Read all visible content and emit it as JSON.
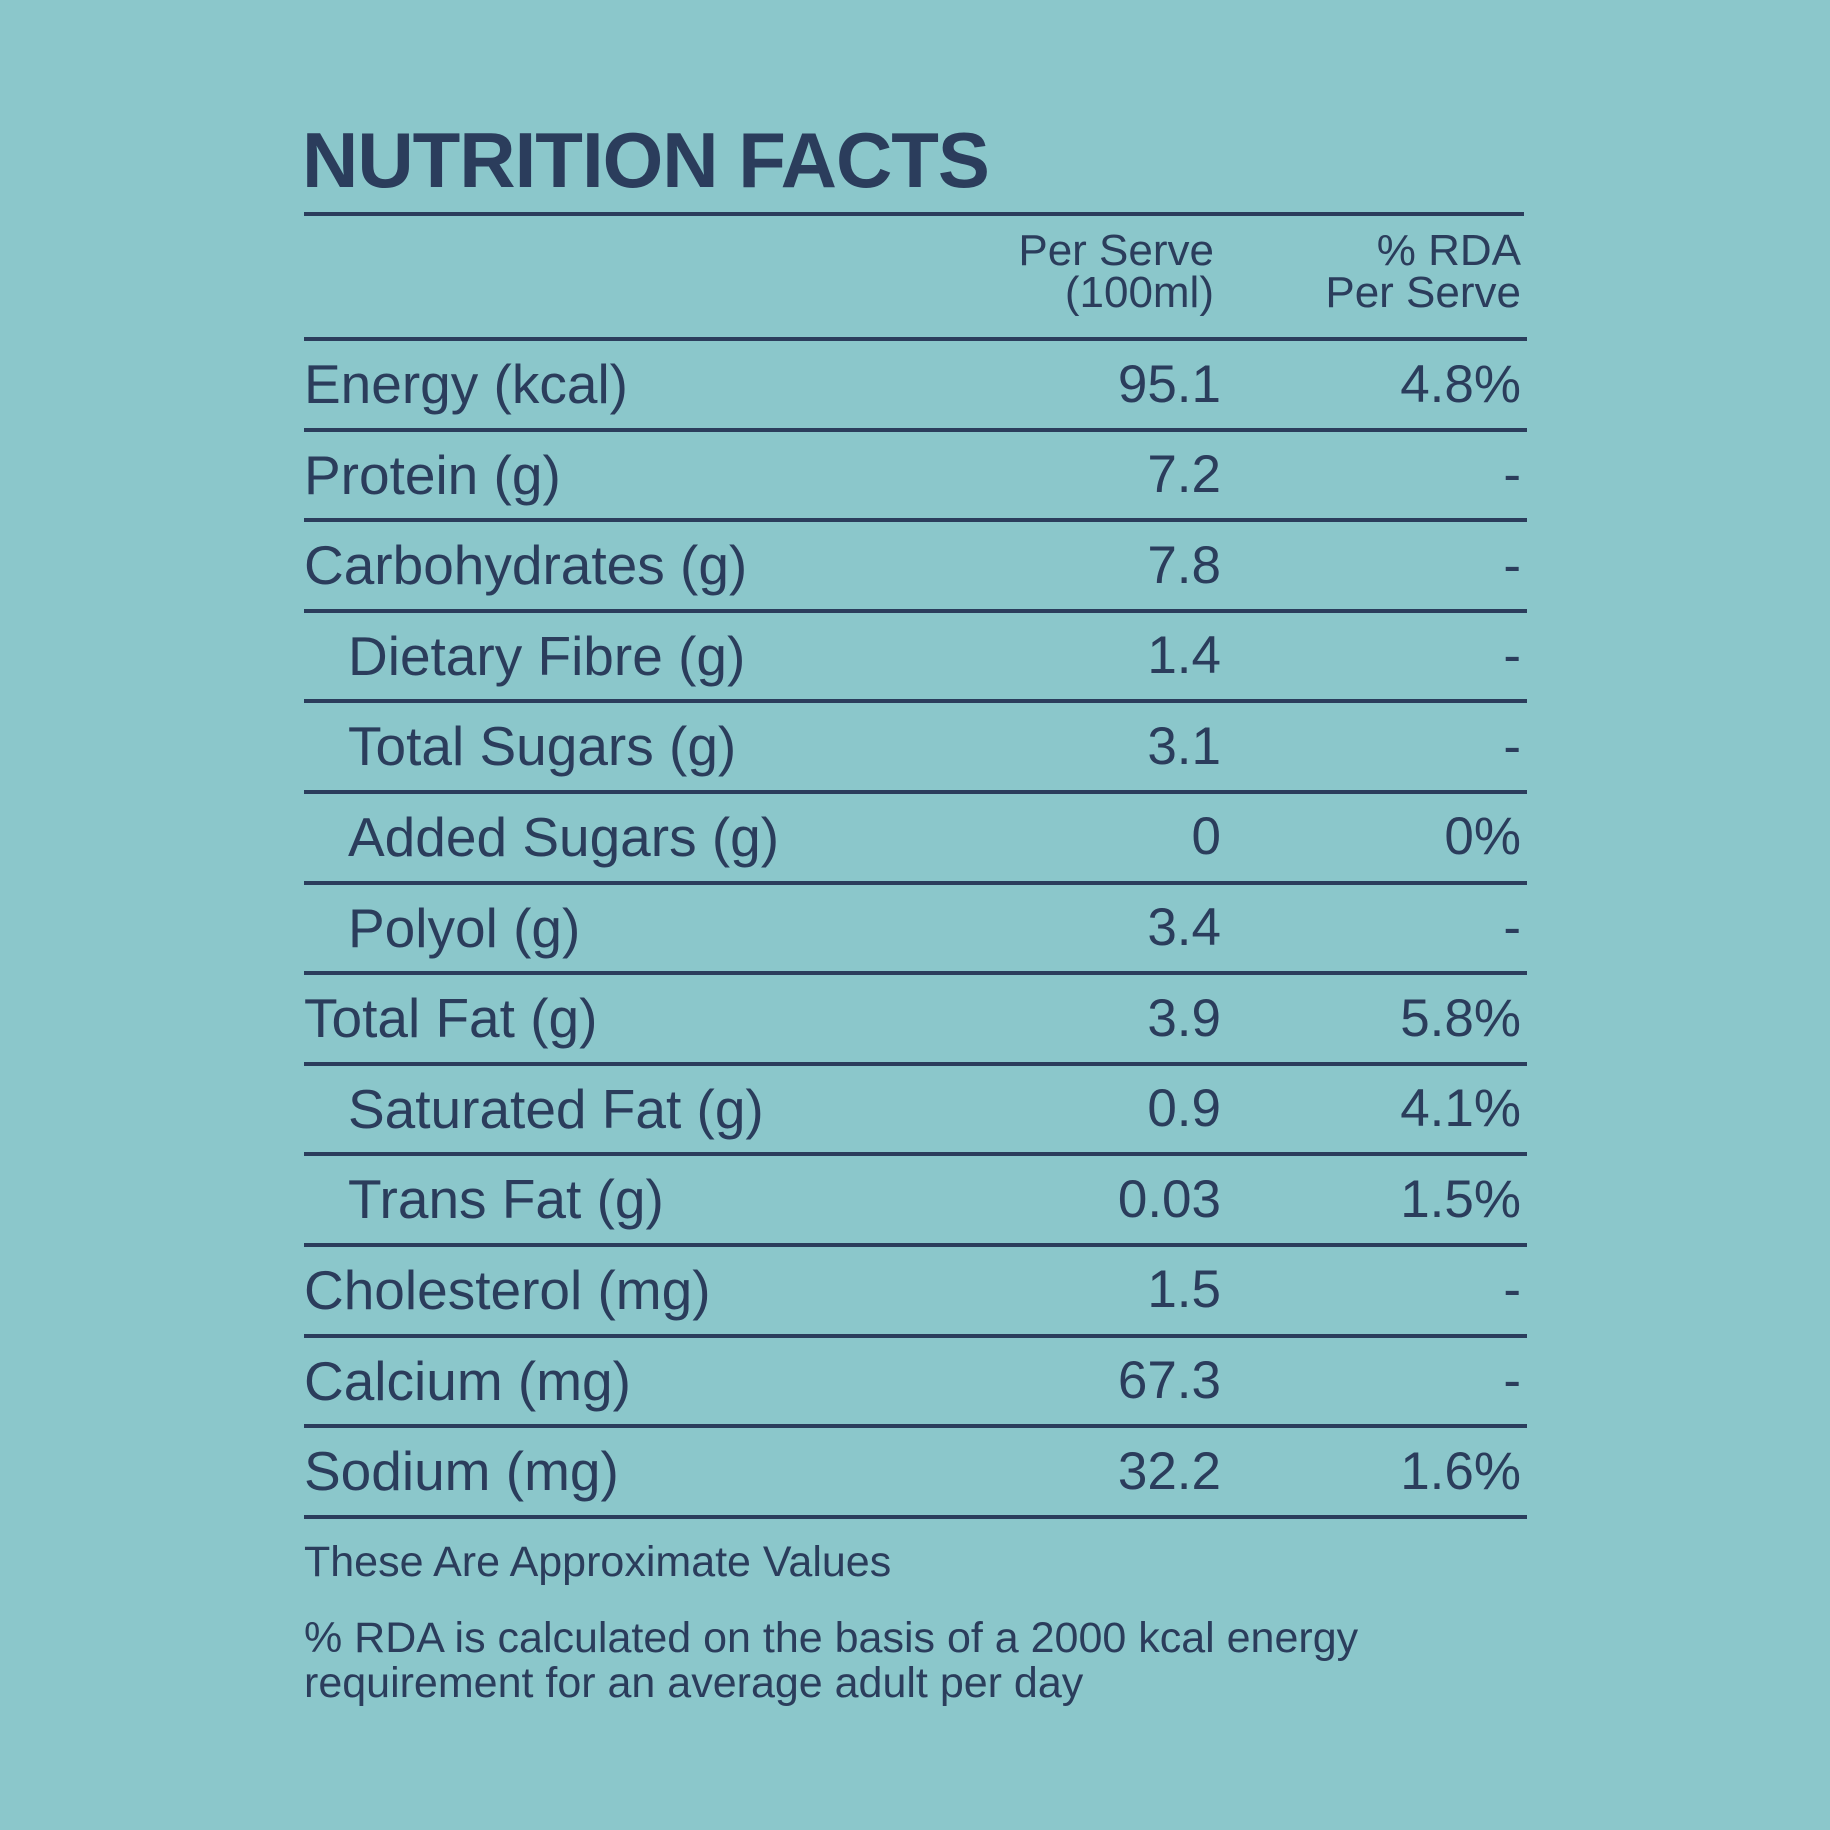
{
  "title": "NUTRITION FACTS",
  "columns": {
    "per_serve_line1": "Per Serve",
    "per_serve_line2": "(100ml)",
    "rda_line1": "% RDA",
    "rda_line2": "Per Serve"
  },
  "rows": [
    {
      "label": "Energy (kcal)",
      "value": "95.1",
      "rda": "4.8%",
      "indent": false
    },
    {
      "label": "Protein (g)",
      "value": "7.2",
      "rda": "-",
      "indent": false
    },
    {
      "label": "Carbohydrates (g)",
      "value": "7.8",
      "rda": "-",
      "indent": false
    },
    {
      "label": "Dietary Fibre (g)",
      "value": "1.4",
      "rda": "-",
      "indent": true
    },
    {
      "label": "Total Sugars (g)",
      "value": "3.1",
      "rda": "-",
      "indent": true
    },
    {
      "label": "Added Sugars (g)",
      "value": "0",
      "rda": "0%",
      "indent": true
    },
    {
      "label": "Polyol (g)",
      "value": "3.4",
      "rda": "-",
      "indent": true
    },
    {
      "label": "Total Fat (g)",
      "value": "3.9",
      "rda": "5.8%",
      "indent": false
    },
    {
      "label": "Saturated Fat (g)",
      "value": "0.9",
      "rda": "4.1%",
      "indent": true
    },
    {
      "label": "Trans Fat (g)",
      "value": "0.03",
      "rda": "1.5%",
      "indent": true
    },
    {
      "label": "Cholesterol (mg)",
      "value": "1.5",
      "rda": "-",
      "indent": false
    },
    {
      "label": "Calcium (mg)",
      "value": "67.3",
      "rda": "-",
      "indent": false
    },
    {
      "label": "Sodium (mg)",
      "value": "32.2",
      "rda": "1.6%",
      "indent": false
    }
  ],
  "notes": {
    "approx": "These Are Approximate Values",
    "rda_basis": "% RDA is calculated on the basis of a 2000 kcal energy requirement for an average adult per day"
  },
  "colors": {
    "background": "#8bc7cb",
    "text": "#2b3d5c"
  }
}
